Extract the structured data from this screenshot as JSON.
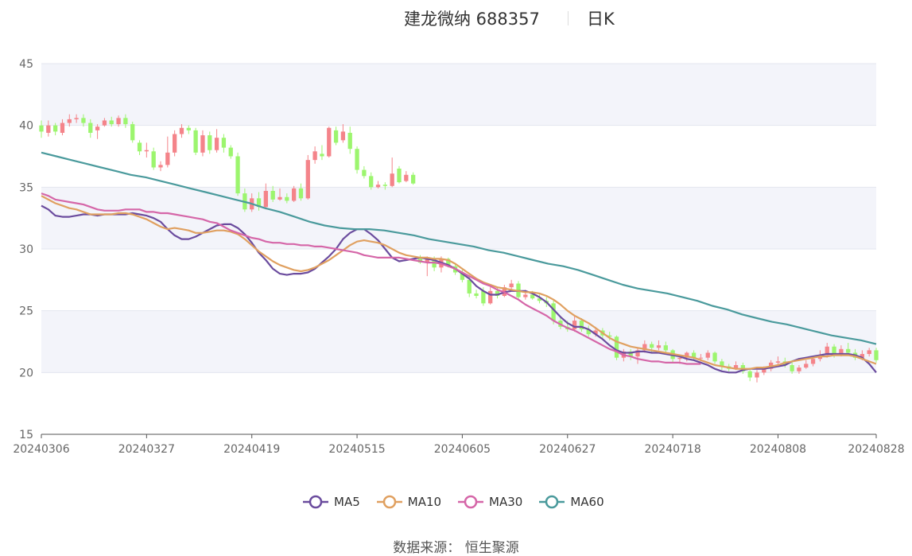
{
  "header": {
    "stock": "建龙微纳 688357",
    "period": "日K"
  },
  "source_label": "数据来源：  恒生聚源",
  "colors": {
    "up": "#f4848a",
    "down": "#9cf56e",
    "MA5": "#6b4c9e",
    "MA10": "#e0a060",
    "MA30": "#d566a8",
    "MA60": "#4a9a9c",
    "band": "#f3f4fa",
    "grid": "#e3e6ef",
    "axis": "#666666"
  },
  "chart_data": {
    "type": "candlestick",
    "title": "建龙微纳 688357",
    "subtitle": "日K",
    "ylim": [
      15,
      45
    ],
    "yticks": [
      15,
      20,
      25,
      30,
      35,
      40,
      45
    ],
    "xticks": [
      "20240306",
      "20240327",
      "20240419",
      "20240515",
      "20240605",
      "20240627",
      "20240718",
      "20240808",
      "20240828"
    ],
    "xtick_index": [
      0,
      15,
      30,
      45,
      60,
      75,
      90,
      105,
      119
    ],
    "grid": true,
    "legend_position": "bottom",
    "candles": [
      [
        40.0,
        39.5,
        40.4,
        39.0
      ],
      [
        39.4,
        40.0,
        40.4,
        39.1
      ],
      [
        40.0,
        39.5,
        40.2,
        39.2
      ],
      [
        39.4,
        40.2,
        40.5,
        39.2
      ],
      [
        40.2,
        40.5,
        40.9,
        39.9
      ],
      [
        40.5,
        40.6,
        40.9,
        40.2
      ],
      [
        40.6,
        40.2,
        40.9,
        39.9
      ],
      [
        40.2,
        39.4,
        40.5,
        39.0
      ],
      [
        39.6,
        39.9,
        40.1,
        38.9
      ],
      [
        40.0,
        40.4,
        40.6,
        39.9
      ],
      [
        40.4,
        40.1,
        40.7,
        39.9
      ],
      [
        40.1,
        40.6,
        40.8,
        39.9
      ],
      [
        40.6,
        40.1,
        40.9,
        39.8
      ],
      [
        40.1,
        38.8,
        40.3,
        38.6
      ],
      [
        38.6,
        37.9,
        38.8,
        37.6
      ],
      [
        37.9,
        38.0,
        38.6,
        37.4
      ],
      [
        37.9,
        36.6,
        38.2,
        36.4
      ],
      [
        36.6,
        36.8,
        37.1,
        36.3
      ],
      [
        36.8,
        37.8,
        39.1,
        36.6
      ],
      [
        37.8,
        39.3,
        39.6,
        37.5
      ],
      [
        39.3,
        39.8,
        40.1,
        39.0
      ],
      [
        39.8,
        39.6,
        40.0,
        39.3
      ],
      [
        39.6,
        37.8,
        39.8,
        37.6
      ],
      [
        37.8,
        39.2,
        39.6,
        37.5
      ],
      [
        39.2,
        38.0,
        39.5,
        37.7
      ],
      [
        38.0,
        39.0,
        39.7,
        37.8
      ],
      [
        39.0,
        38.2,
        39.3,
        37.8
      ],
      [
        38.2,
        37.5,
        38.4,
        37.3
      ],
      [
        37.5,
        34.5,
        37.8,
        34.3
      ],
      [
        34.5,
        33.2,
        34.9,
        33.0
      ],
      [
        33.2,
        34.1,
        34.5,
        33.0
      ],
      [
        34.1,
        33.4,
        34.6,
        33.1
      ],
      [
        33.4,
        34.7,
        35.3,
        33.2
      ],
      [
        34.7,
        34.0,
        35.1,
        33.8
      ],
      [
        34.0,
        34.2,
        34.9,
        33.9
      ],
      [
        34.2,
        33.9,
        34.5,
        33.7
      ],
      [
        33.9,
        34.9,
        35.1,
        33.8
      ],
      [
        34.9,
        34.1,
        35.3,
        33.9
      ],
      [
        34.1,
        37.2,
        37.6,
        34.0
      ],
      [
        37.2,
        37.9,
        38.3,
        36.9
      ],
      [
        37.7,
        37.5,
        38.4,
        37.2
      ],
      [
        37.5,
        39.8,
        39.9,
        37.4
      ],
      [
        39.6,
        38.6,
        39.9,
        38.4
      ],
      [
        38.8,
        39.5,
        40.1,
        38.6
      ],
      [
        39.4,
        38.1,
        39.9,
        37.7
      ],
      [
        38.1,
        36.4,
        38.3,
        36.1
      ],
      [
        36.4,
        35.9,
        36.7,
        35.7
      ],
      [
        35.9,
        35.0,
        36.2,
        34.8
      ],
      [
        35.0,
        35.2,
        35.5,
        34.9
      ],
      [
        35.2,
        35.1,
        35.4,
        34.8
      ],
      [
        35.1,
        36.1,
        37.4,
        35.0
      ],
      [
        36.5,
        35.4,
        36.7,
        35.3
      ],
      [
        35.5,
        36.0,
        36.3,
        35.4
      ],
      [
        36.0,
        35.3,
        36.2,
        35.2
      ],
      [
        29.2,
        28.9,
        29.5,
        28.8
      ],
      [
        28.9,
        29.2,
        29.4,
        27.8
      ],
      [
        29.2,
        28.5,
        29.4,
        28.2
      ],
      [
        28.5,
        29.2,
        29.4,
        28.1
      ],
      [
        29.2,
        28.6,
        29.3,
        28.5
      ],
      [
        28.6,
        28.1,
        28.8,
        27.9
      ],
      [
        28.1,
        27.5,
        28.3,
        27.3
      ],
      [
        27.5,
        26.4,
        27.9,
        26.1
      ],
      [
        26.4,
        26.2,
        26.7,
        26.0
      ],
      [
        26.6,
        25.6,
        26.9,
        25.4
      ],
      [
        25.6,
        26.6,
        26.9,
        25.5
      ],
      [
        26.6,
        26.2,
        26.9,
        26.0
      ],
      [
        26.2,
        26.9,
        27.1,
        26.1
      ],
      [
        26.9,
        27.2,
        27.5,
        26.7
      ],
      [
        27.2,
        26.1,
        27.4,
        25.9
      ],
      [
        26.1,
        26.3,
        26.7,
        25.9
      ],
      [
        26.3,
        26.0,
        26.6,
        25.9
      ],
      [
        26.0,
        25.8,
        26.3,
        25.6
      ],
      [
        25.8,
        25.6,
        26.1,
        25.3
      ],
      [
        25.6,
        24.2,
        25.9,
        23.9
      ],
      [
        24.2,
        23.7,
        24.5,
        23.5
      ],
      [
        23.7,
        23.5,
        24.2,
        23.3
      ],
      [
        23.5,
        24.2,
        24.6,
        23.3
      ],
      [
        24.2,
        23.5,
        24.4,
        23.3
      ],
      [
        23.5,
        23.1,
        23.8,
        22.9
      ],
      [
        23.1,
        23.4,
        23.7,
        22.9
      ],
      [
        23.4,
        23.0,
        23.6,
        22.7
      ],
      [
        23.0,
        22.9,
        23.3,
        22.6
      ],
      [
        22.9,
        21.2,
        23.0,
        21.0
      ],
      [
        21.2,
        21.7,
        21.9,
        20.9
      ],
      [
        21.7,
        21.3,
        21.9,
        21.0
      ],
      [
        21.3,
        21.8,
        22.0,
        20.7
      ],
      [
        21.8,
        22.3,
        22.6,
        21.6
      ],
      [
        22.3,
        22.0,
        22.5,
        21.6
      ],
      [
        22.0,
        22.2,
        22.6,
        21.8
      ],
      [
        22.2,
        21.8,
        22.5,
        21.6
      ],
      [
        21.8,
        21.1,
        21.9,
        20.8
      ],
      [
        21.1,
        21.2,
        21.4,
        20.7
      ],
      [
        21.2,
        21.6,
        21.7,
        20.9
      ],
      [
        21.6,
        21.2,
        21.8,
        21.0
      ],
      [
        21.2,
        21.2,
        21.5,
        20.9
      ],
      [
        21.2,
        21.6,
        21.8,
        21.0
      ],
      [
        21.6,
        20.9,
        21.7,
        20.7
      ],
      [
        20.9,
        20.5,
        21.1,
        20.2
      ],
      [
        20.5,
        20.3,
        20.7,
        20.1
      ],
      [
        20.3,
        20.6,
        20.9,
        20.2
      ],
      [
        20.6,
        20.1,
        20.8,
        19.9
      ],
      [
        20.1,
        19.6,
        20.3,
        19.3
      ],
      [
        19.6,
        20.0,
        20.2,
        19.2
      ],
      [
        20.0,
        20.3,
        20.5,
        19.8
      ],
      [
        20.3,
        20.8,
        21.0,
        20.1
      ],
      [
        20.8,
        20.9,
        21.3,
        20.6
      ],
      [
        20.9,
        20.6,
        21.2,
        20.4
      ],
      [
        20.6,
        20.1,
        21.0,
        19.9
      ],
      [
        20.1,
        20.4,
        20.6,
        19.9
      ],
      [
        20.4,
        20.7,
        21.0,
        20.3
      ],
      [
        20.7,
        21.1,
        21.3,
        20.5
      ],
      [
        21.1,
        21.4,
        21.8,
        20.9
      ],
      [
        21.4,
        22.1,
        22.4,
        21.2
      ],
      [
        22.1,
        21.5,
        22.3,
        21.2
      ],
      [
        21.5,
        21.9,
        22.2,
        21.3
      ],
      [
        21.9,
        21.6,
        22.4,
        21.4
      ],
      [
        21.6,
        21.2,
        21.9,
        21.0
      ],
      [
        21.2,
        21.5,
        21.8,
        21.0
      ],
      [
        21.5,
        21.8,
        22.0,
        21.3
      ],
      [
        21.8,
        21.0,
        22.0,
        20.8
      ]
    ],
    "series": [
      {
        "name": "MA5",
        "values": [
          33.5,
          33.2,
          32.7,
          32.6,
          32.6,
          32.7,
          32.8,
          32.8,
          32.7,
          32.8,
          32.8,
          32.8,
          32.8,
          32.9,
          32.8,
          32.7,
          32.5,
          32.2,
          31.6,
          31.1,
          30.8,
          30.8,
          31.0,
          31.3,
          31.6,
          31.9,
          32.0,
          32.0,
          31.7,
          31.2,
          30.5,
          29.7,
          29.1,
          28.4,
          28.0,
          27.9,
          28.0,
          28.0,
          28.1,
          28.4,
          28.9,
          29.4,
          30.0,
          30.8,
          31.3,
          31.6,
          31.6,
          31.2,
          30.7,
          30.0,
          29.3,
          29.0,
          29.1,
          29.2,
          29.3,
          29.2,
          29.1,
          28.9,
          28.7,
          28.4,
          28.0,
          27.6,
          27.0,
          26.6,
          26.3,
          26.3,
          26.5,
          26.6,
          26.6,
          26.6,
          26.4,
          26.1,
          25.7,
          25.1,
          24.5,
          24.0,
          23.7,
          23.7,
          23.5,
          23.1,
          22.7,
          22.2,
          21.8,
          21.6,
          21.6,
          21.7,
          21.7,
          21.6,
          21.6,
          21.5,
          21.4,
          21.3,
          21.1,
          21.0,
          20.8,
          20.6,
          20.3,
          20.1,
          20.0,
          20.0,
          20.2,
          20.3,
          20.3,
          20.3,
          20.4,
          20.5,
          20.6,
          20.9,
          21.1,
          21.2,
          21.3,
          21.4,
          21.5,
          21.5,
          21.5,
          21.5,
          21.4,
          21.2,
          20.7,
          20.0
        ]
      },
      {
        "name": "MA10",
        "values": [
          34.3,
          34.0,
          33.7,
          33.5,
          33.3,
          33.2,
          33.0,
          32.8,
          32.8,
          32.8,
          32.8,
          32.9,
          32.9,
          32.8,
          32.6,
          32.4,
          32.1,
          31.8,
          31.6,
          31.7,
          31.6,
          31.5,
          31.3,
          31.3,
          31.4,
          31.5,
          31.5,
          31.4,
          31.2,
          30.8,
          30.3,
          29.8,
          29.4,
          29.0,
          28.7,
          28.5,
          28.3,
          28.2,
          28.3,
          28.5,
          28.8,
          29.1,
          29.5,
          29.9,
          30.3,
          30.6,
          30.7,
          30.6,
          30.5,
          30.3,
          30.0,
          29.7,
          29.5,
          29.4,
          29.3,
          29.3,
          29.2,
          29.2,
          29.1,
          28.8,
          28.4,
          28.0,
          27.6,
          27.3,
          27.1,
          26.9,
          26.8,
          26.7,
          26.6,
          26.5,
          26.5,
          26.4,
          26.2,
          25.9,
          25.5,
          25.0,
          24.6,
          24.3,
          24.0,
          23.6,
          23.2,
          22.8,
          22.5,
          22.3,
          22.1,
          22.0,
          21.9,
          21.8,
          21.7,
          21.6,
          21.5,
          21.4,
          21.3,
          21.2,
          21.0,
          20.8,
          20.6,
          20.5,
          20.4,
          20.3,
          20.3,
          20.3,
          20.4,
          20.4,
          20.5,
          20.6,
          20.8,
          20.9,
          21.0,
          21.1,
          21.2,
          21.3,
          21.3,
          21.4,
          21.4,
          21.4,
          21.3,
          21.1,
          20.9,
          20.7
        ]
      },
      {
        "name": "MA30",
        "values": [
          34.5,
          34.3,
          34.0,
          33.9,
          33.8,
          33.7,
          33.6,
          33.4,
          33.2,
          33.1,
          33.1,
          33.1,
          33.2,
          33.2,
          33.2,
          33.0,
          33.0,
          32.9,
          32.9,
          32.8,
          32.7,
          32.6,
          32.5,
          32.4,
          32.2,
          32.1,
          31.8,
          31.5,
          31.3,
          31.1,
          30.9,
          30.8,
          30.6,
          30.5,
          30.5,
          30.4,
          30.4,
          30.3,
          30.3,
          30.2,
          30.2,
          30.1,
          30.0,
          29.9,
          29.8,
          29.7,
          29.5,
          29.4,
          29.3,
          29.3,
          29.3,
          29.3,
          29.2,
          29.1,
          29.0,
          28.9,
          28.9,
          28.8,
          28.6,
          28.4,
          28.1,
          27.8,
          27.5,
          27.2,
          27.0,
          26.7,
          26.5,
          26.2,
          25.9,
          25.5,
          25.2,
          24.9,
          24.6,
          24.2,
          23.9,
          23.6,
          23.4,
          23.1,
          22.8,
          22.5,
          22.2,
          21.9,
          21.7,
          21.4,
          21.3,
          21.1,
          21.0,
          20.9,
          20.9,
          20.8,
          20.8,
          20.8,
          20.7,
          20.7,
          20.7
        ]
      },
      {
        "name": "MA60",
        "values": [
          37.8,
          37.5,
          37.2,
          36.9,
          36.6,
          36.3,
          36.0,
          35.8,
          35.5,
          35.2,
          34.9,
          34.6,
          34.3,
          34.0,
          33.7,
          33.3,
          33.0,
          32.6,
          32.2,
          31.9,
          31.7,
          31.6,
          31.6,
          31.5,
          31.3,
          31.1,
          30.8,
          30.6,
          30.4,
          30.2,
          29.9,
          29.7,
          29.4,
          29.1,
          28.8,
          28.6,
          28.3,
          27.9,
          27.5,
          27.1,
          26.8,
          26.6,
          26.4,
          26.1,
          25.8,
          25.4,
          25.1,
          24.7,
          24.4,
          24.1,
          23.9,
          23.6,
          23.3,
          23.0,
          22.8,
          22.6,
          22.3
        ]
      }
    ],
    "series_x": {
      "MA5": "all",
      "MA10": "all",
      "MA30": [
        0,
        1,
        2,
        3,
        4,
        5,
        6,
        7,
        8,
        9,
        10,
        11,
        12,
        13,
        14,
        15,
        16,
        17,
        18,
        19,
        20,
        21,
        22,
        23,
        24,
        25,
        26,
        27,
        28,
        29,
        30,
        31,
        32,
        33,
        34,
        35,
        36,
        37,
        38,
        39,
        40,
        41,
        42,
        43,
        44,
        45,
        46,
        47,
        48,
        49,
        50,
        51,
        52,
        53,
        54,
        55,
        56,
        57,
        58,
        59,
        60,
        61,
        62,
        63,
        64,
        65,
        66,
        67,
        68,
        69,
        70,
        71,
        72,
        73,
        74,
        75,
        76,
        77,
        78,
        79,
        80,
        81,
        82,
        83,
        84,
        85,
        86,
        87,
        88,
        89,
        90,
        91,
        92,
        93,
        94
      ],
      "MA60": "stride"
    }
  }
}
